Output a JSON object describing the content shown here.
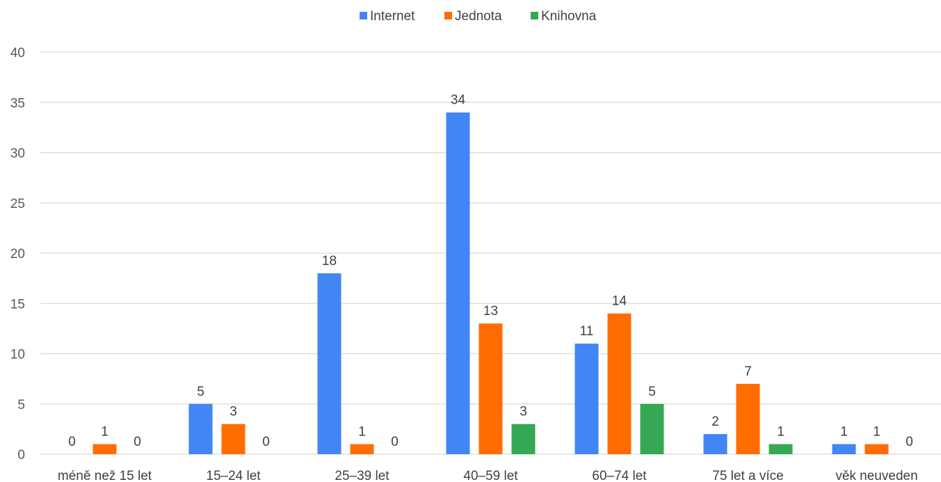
{
  "chart_data": {
    "type": "bar",
    "categories": [
      "méně než 15 let",
      "15–24 let",
      "25–39 let",
      "40–59 let",
      "60–74 let",
      "75 let a více",
      "věk neuveden"
    ],
    "series": [
      {
        "name": "Internet",
        "color": "#4285f4",
        "values": [
          0,
          5,
          18,
          34,
          11,
          2,
          1
        ]
      },
      {
        "name": "Jednota",
        "color": "#ff6d01",
        "values": [
          1,
          3,
          1,
          13,
          14,
          7,
          1
        ]
      },
      {
        "name": "Knihovna",
        "color": "#34a853",
        "values": [
          0,
          0,
          0,
          3,
          5,
          1,
          0
        ]
      }
    ],
    "yticks": [
      0,
      5,
      10,
      15,
      20,
      25,
      30,
      35,
      40
    ],
    "ylim": [
      0,
      40
    ],
    "grid": true,
    "legend_position": "top-center",
    "data_labels": true
  }
}
